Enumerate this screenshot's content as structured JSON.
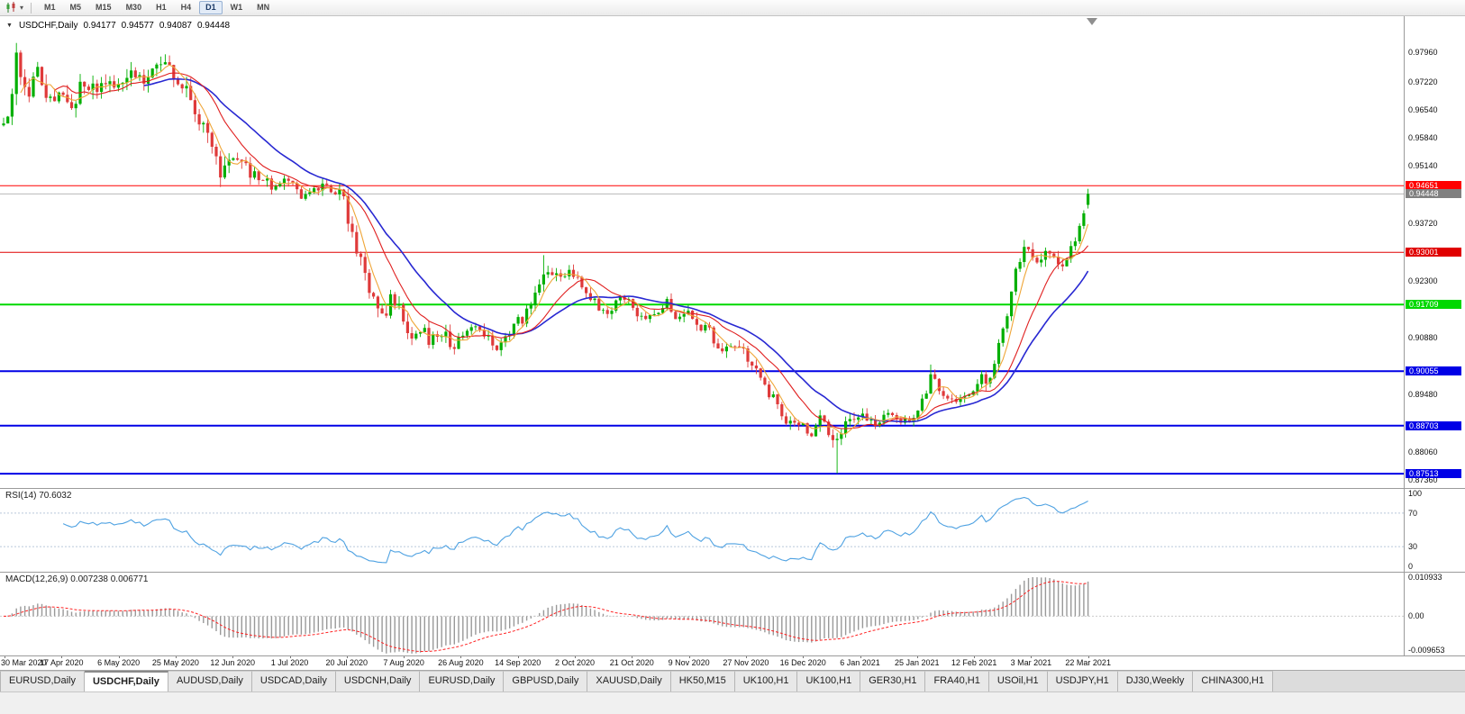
{
  "icons": {
    "caret_down": "▼",
    "toolbar_caret": "▾"
  },
  "toolbar": {
    "timeframes": [
      "M1",
      "M5",
      "M15",
      "M30",
      "H1",
      "H4",
      "D1",
      "W1",
      "MN"
    ],
    "active_timeframe": "D1"
  },
  "chart": {
    "legend": {
      "symbol": "USDCHF,Daily",
      "open": "0.94177",
      "high": "0.94577",
      "low": "0.94087",
      "close": "0.94448"
    },
    "price_axis_labels": [
      "0.97960",
      "0.97220",
      "0.96540",
      "0.95840",
      "0.95140",
      "0.93720",
      "0.92300",
      "0.90880",
      "0.89480",
      "0.88060",
      "0.87360"
    ],
    "current_price": {
      "label": "0.94448",
      "price": 0.94448,
      "color": "#808080"
    },
    "hlines": [
      {
        "label": "0.94651",
        "price": 0.94651,
        "color": "#FF0000",
        "width": 1
      },
      {
        "label": "0.93001",
        "price": 0.93001,
        "color": "#E00000",
        "width": 1
      },
      {
        "label": "0.91709",
        "price": 0.91709,
        "color": "#00D800",
        "width": 2
      },
      {
        "label": "0.90055",
        "price": 0.90055,
        "color": "#0000E6",
        "width": 2
      },
      {
        "label": "0.88703",
        "price": 0.88703,
        "color": "#0000E6",
        "width": 2
      },
      {
        "label": "0.87513",
        "price": 0.87513,
        "color": "#0000E6",
        "width": 2
      }
    ]
  },
  "rsi": {
    "label": "RSI(14) 70.6032",
    "period": 14,
    "current": "70.6032",
    "color": "#4FA2E2",
    "axis_labels": [
      {
        "text": "100",
        "value": 100,
        "line": false
      },
      {
        "text": "70",
        "value": 70,
        "line": true
      },
      {
        "text": "30",
        "value": 30,
        "line": true
      },
      {
        "text": "0",
        "value": 0,
        "line": false
      }
    ]
  },
  "macd": {
    "label": "MACD(12,26,9) 0.007238 0.006771",
    "fast": 12,
    "slow": 26,
    "signal": 9,
    "main_value": "0.007238",
    "signal_value": "0.006771",
    "axis_max": 0.010933,
    "axis_min": -0.009653,
    "histogram_color": "#999999",
    "signal_color": "#FF2020",
    "axis_labels": [
      {
        "text": "0.010933",
        "value": 0.010933
      },
      {
        "text": "0.00",
        "value": 0
      },
      {
        "text": "-0.009653",
        "value": -0.009653
      }
    ]
  },
  "date_axis": [
    "30 Mar 2020",
    "17 Apr 2020",
    "6 May 2020",
    "25 May 2020",
    "12 Jun 2020",
    "1 Jul 2020",
    "20 Jul 2020",
    "7 Aug 2020",
    "26 Aug 2020",
    "14 Sep 2020",
    "2 Oct 2020",
    "21 Oct 2020",
    "9 Nov 2020",
    "27 Nov 2020",
    "16 Dec 2020",
    "6 Jan 2021",
    "25 Jan 2021",
    "12 Feb 2021",
    "3 Mar 2021",
    "22 Mar 2021"
  ],
  "tabs": [
    {
      "label": "EURUSD,Daily",
      "active": false
    },
    {
      "label": "USDCHF,Daily",
      "active": true
    },
    {
      "label": "AUDUSD,Daily",
      "active": false
    },
    {
      "label": "USDCAD,Daily",
      "active": false
    },
    {
      "label": "USDCNH,Daily",
      "active": false
    },
    {
      "label": "EURUSD,Daily",
      "active": false
    },
    {
      "label": "GBPUSD,Daily",
      "active": false
    },
    {
      "label": "XAUUSD,Daily",
      "active": false
    },
    {
      "label": "HK50,M15",
      "active": false
    },
    {
      "label": "UK100,H1",
      "active": false
    },
    {
      "label": "UK100,H1",
      "active": false
    },
    {
      "label": "GER30,H1",
      "active": false
    },
    {
      "label": "FRA40,H1",
      "active": false
    },
    {
      "label": "USOil,H1",
      "active": false
    },
    {
      "label": "USDJPY,H1",
      "active": false
    },
    {
      "label": "DJ30,Weekly",
      "active": false
    },
    {
      "label": "CHINA300,H1",
      "active": false
    }
  ],
  "chart_data": {
    "type": "candlestick",
    "symbol": "USDCHF",
    "timeframe": "Daily",
    "num_candles": 256,
    "seed": 13,
    "price_range": {
      "top": 0.98855,
      "bottom": 0.87159
    },
    "last": {
      "o": 0.94177,
      "h": 0.94577,
      "l": 0.94087,
      "c": 0.94448
    },
    "colors": {
      "up": "#00AF00",
      "down": "#DF3A3A",
      "ma_fast": "#EFA638",
      "ma_mid": "#E02020",
      "ma_slow": "#2828D2"
    },
    "ma": {
      "fast": 5,
      "mid": 13,
      "slow": 34
    },
    "anchors": [
      [
        0.0,
        0.9615
      ],
      [
        0.012,
        0.9775
      ],
      [
        0.022,
        0.97
      ],
      [
        0.032,
        0.975
      ],
      [
        0.042,
        0.9672
      ],
      [
        0.053,
        0.97
      ],
      [
        0.063,
        0.9672
      ],
      [
        0.076,
        0.9722
      ],
      [
        0.088,
        0.97
      ],
      [
        0.105,
        0.9722
      ],
      [
        0.117,
        0.9758
      ],
      [
        0.13,
        0.973
      ],
      [
        0.142,
        0.9768
      ],
      [
        0.159,
        0.974
      ],
      [
        0.167,
        0.97
      ],
      [
        0.179,
        0.9642
      ],
      [
        0.192,
        0.9562
      ],
      [
        0.2,
        0.9492
      ],
      [
        0.211,
        0.953
      ],
      [
        0.221,
        0.9515
      ],
      [
        0.233,
        0.9482
      ],
      [
        0.246,
        0.9465
      ],
      [
        0.263,
        0.947
      ],
      [
        0.275,
        0.9445
      ],
      [
        0.287,
        0.9468
      ],
      [
        0.3,
        0.9455
      ],
      [
        0.312,
        0.944
      ],
      [
        0.322,
        0.9345
      ],
      [
        0.333,
        0.925
      ],
      [
        0.341,
        0.9175
      ],
      [
        0.35,
        0.914
      ],
      [
        0.358,
        0.9185
      ],
      [
        0.369,
        0.914
      ],
      [
        0.377,
        0.9085
      ],
      [
        0.385,
        0.9118
      ],
      [
        0.394,
        0.908
      ],
      [
        0.405,
        0.9105
      ],
      [
        0.416,
        0.906
      ],
      [
        0.421,
        0.9082
      ],
      [
        0.433,
        0.913
      ],
      [
        0.445,
        0.909
      ],
      [
        0.456,
        0.907
      ],
      [
        0.464,
        0.9095
      ],
      [
        0.473,
        0.912
      ],
      [
        0.483,
        0.9155
      ],
      [
        0.49,
        0.9192
      ],
      [
        0.497,
        0.9262
      ],
      [
        0.503,
        0.925
      ],
      [
        0.512,
        0.923
      ],
      [
        0.52,
        0.9258
      ],
      [
        0.527,
        0.9245
      ],
      [
        0.537,
        0.92
      ],
      [
        0.547,
        0.917
      ],
      [
        0.557,
        0.9155
      ],
      [
        0.568,
        0.9185
      ],
      [
        0.579,
        0.917
      ],
      [
        0.59,
        0.913
      ],
      [
        0.601,
        0.9145
      ],
      [
        0.611,
        0.918
      ],
      [
        0.621,
        0.914
      ],
      [
        0.631,
        0.9155
      ],
      [
        0.642,
        0.912
      ],
      [
        0.653,
        0.91
      ],
      [
        0.661,
        0.9032
      ],
      [
        0.671,
        0.9078
      ],
      [
        0.684,
        0.905
      ],
      [
        0.696,
        0.899
      ],
      [
        0.711,
        0.893
      ],
      [
        0.723,
        0.888
      ],
      [
        0.737,
        0.8868
      ],
      [
        0.744,
        0.8838
      ],
      [
        0.752,
        0.8888
      ],
      [
        0.761,
        0.8855
      ],
      [
        0.768,
        0.8842
      ],
      [
        0.777,
        0.889
      ],
      [
        0.789,
        0.8895
      ],
      [
        0.801,
        0.8876
      ],
      [
        0.815,
        0.89
      ],
      [
        0.827,
        0.888
      ],
      [
        0.842,
        0.889
      ],
      [
        0.851,
        0.8958
      ],
      [
        0.856,
        0.8998
      ],
      [
        0.862,
        0.8965
      ],
      [
        0.87,
        0.893
      ],
      [
        0.879,
        0.8925
      ],
      [
        0.887,
        0.8945
      ],
      [
        0.895,
        0.8955
      ],
      [
        0.902,
        0.8985
      ],
      [
        0.907,
        0.896
      ],
      [
        0.914,
        0.904
      ],
      [
        0.923,
        0.912
      ],
      [
        0.931,
        0.923
      ],
      [
        0.939,
        0.9298
      ],
      [
        0.947,
        0.9318
      ],
      [
        0.952,
        0.927
      ],
      [
        0.958,
        0.9288
      ],
      [
        0.964,
        0.93
      ],
      [
        0.97,
        0.928
      ],
      [
        0.977,
        0.925
      ],
      [
        0.983,
        0.9298
      ],
      [
        0.99,
        0.934
      ],
      [
        0.997,
        0.9395
      ],
      [
        1.0,
        0.94448
      ]
    ],
    "volatility": [
      [
        0.0,
        0.005
      ],
      [
        0.03,
        0.0038
      ],
      [
        0.08,
        0.003
      ],
      [
        0.15,
        0.0028
      ],
      [
        0.19,
        0.0032
      ],
      [
        0.24,
        0.0022
      ],
      [
        0.3,
        0.0018
      ],
      [
        0.33,
        0.003
      ],
      [
        0.38,
        0.0026
      ],
      [
        0.44,
        0.002
      ],
      [
        0.49,
        0.0024
      ],
      [
        0.53,
        0.0018
      ],
      [
        0.6,
        0.0016
      ],
      [
        0.65,
        0.0022
      ],
      [
        0.72,
        0.002
      ],
      [
        0.77,
        0.0024
      ],
      [
        0.82,
        0.0014
      ],
      [
        0.87,
        0.0015
      ],
      [
        0.92,
        0.0026
      ],
      [
        0.96,
        0.0022
      ],
      [
        1.0,
        0.0018
      ]
    ],
    "spikes": [
      {
        "f": 0.012,
        "high": 0.9797
      },
      {
        "f": 0.2,
        "low": 0.9462
      },
      {
        "f": 0.497,
        "high": 0.9293
      },
      {
        "f": 0.768,
        "low": 0.8752
      },
      {
        "f": 0.856,
        "high": 0.9022
      }
    ]
  }
}
